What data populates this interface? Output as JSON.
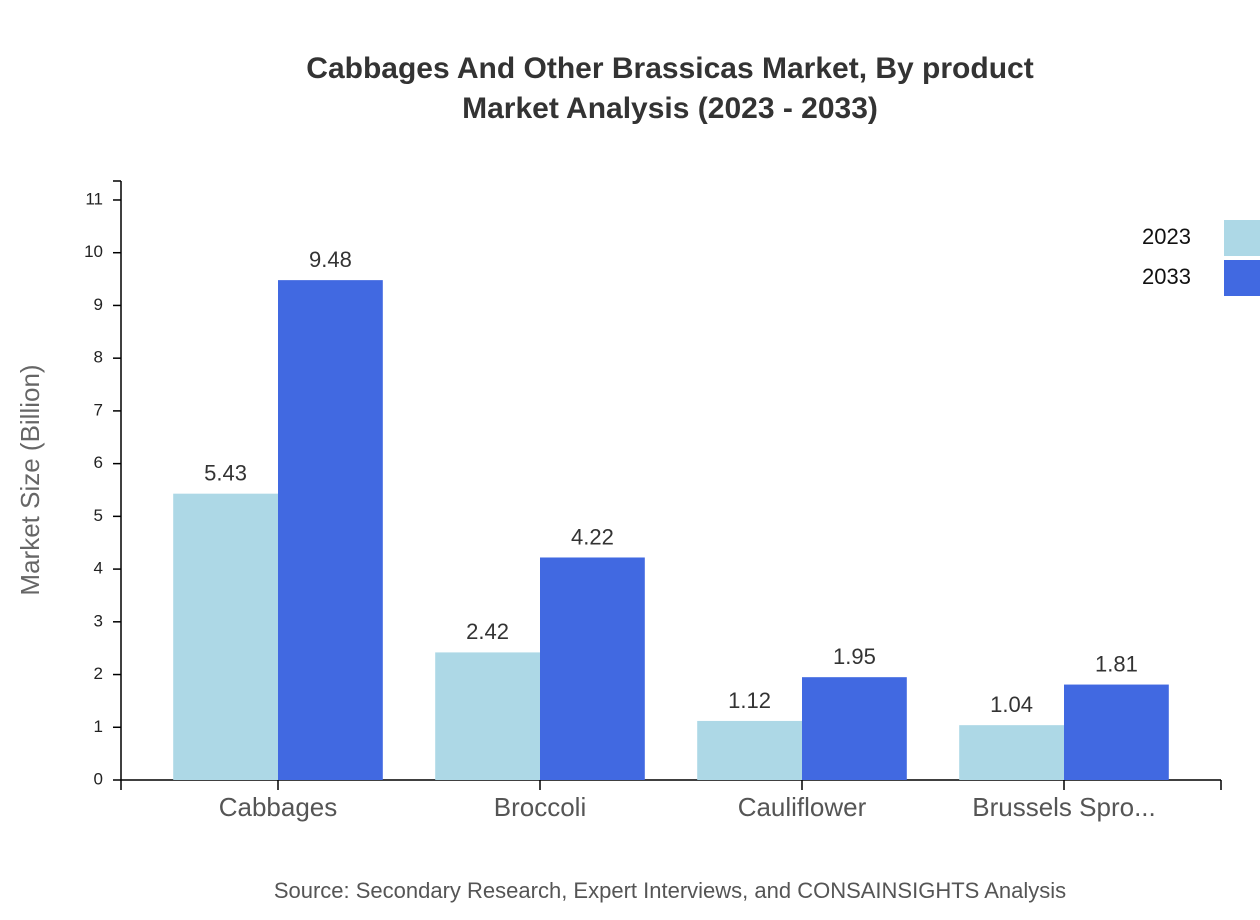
{
  "chart_data": {
    "type": "bar",
    "title": "Cabbages And Other Brassicas Market, By product",
    "subtitle": "Market Analysis (2023 - 2033)",
    "y_label": "Market Size (Billion)",
    "source": "Source: Secondary Research, Expert Interviews, and CONSAINSIGHTS Analysis",
    "categories": [
      "Cabbages",
      "Broccoli",
      "Cauliflower",
      "Brussels Spro..."
    ],
    "series": [
      {
        "name": "2023",
        "color": "#add8e6",
        "values": [
          5.43,
          2.42,
          1.12,
          1.04
        ]
      },
      {
        "name": "2033",
        "color": "#4169e1",
        "values": [
          9.48,
          4.22,
          1.95,
          1.81
        ]
      }
    ],
    "ylim": [
      0,
      11.36
    ],
    "yticks": [
      0,
      1,
      2,
      3,
      4,
      5,
      6,
      7,
      8,
      9,
      10,
      11
    ],
    "legend": "top-right"
  }
}
